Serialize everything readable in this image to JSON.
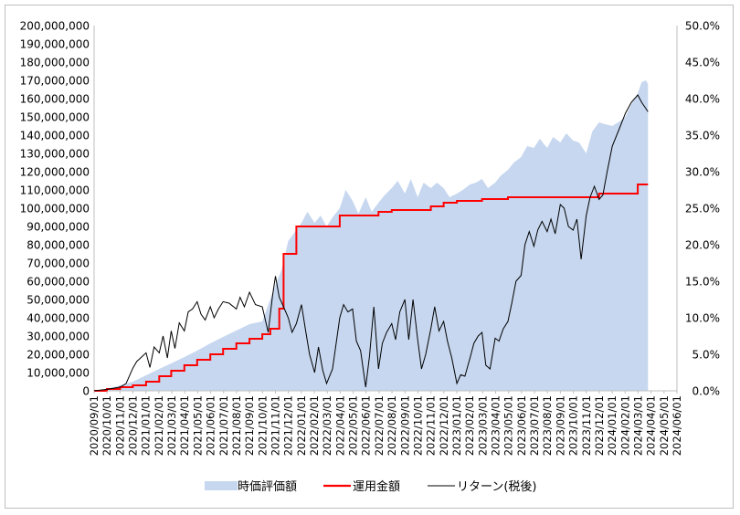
{
  "chart_data": {
    "type": "area",
    "title": "",
    "xlabel": "",
    "ylabel": "",
    "x_tick_labels": [
      "2020/09/01",
      "2020/10/01",
      "2020/11/01",
      "2020/12/01",
      "2021/01/01",
      "2021/02/01",
      "2021/03/01",
      "2021/04/01",
      "2021/05/01",
      "2021/06/01",
      "2021/07/01",
      "2021/08/01",
      "2021/09/01",
      "2021/10/01",
      "2021/11/01",
      "2021/12/01",
      "2022/01/01",
      "2022/02/01",
      "2022/03/01",
      "2022/04/01",
      "2022/05/01",
      "2022/06/01",
      "2022/07/01",
      "2022/08/01",
      "2022/09/01",
      "2022/10/01",
      "2022/11/01",
      "2022/12/01",
      "2023/01/01",
      "2023/02/01",
      "2023/03/01",
      "2023/04/01",
      "2023/05/01",
      "2023/06/01",
      "2023/07/01",
      "2023/08/01",
      "2023/09/01",
      "2023/10/01",
      "2023/11/01",
      "2023/12/01",
      "2024/01/01",
      "2024/02/01",
      "2024/03/01",
      "2024/04/01",
      "2024/05/01",
      "2024/06/01"
    ],
    "y_left": {
      "range": [
        0,
        200000000
      ],
      "tick_labels": [
        "0",
        "10,000,000",
        "20,000,000",
        "30,000,000",
        "40,000,000",
        "50,000,000",
        "60,000,000",
        "70,000,000",
        "80,000,000",
        "90,000,000",
        "100,000,000",
        "110,000,000",
        "120,000,000",
        "130,000,000",
        "140,000,000",
        "150,000,000",
        "160,000,000",
        "170,000,000",
        "180,000,000",
        "190,000,000",
        "200,000,000"
      ]
    },
    "y_right": {
      "range": [
        0,
        0.5
      ],
      "tick_labels": [
        "0.0%",
        "5.0%",
        "10.0%",
        "15.0%",
        "20.0%",
        "25.0%",
        "30.0%",
        "35.0%",
        "40.0%",
        "45.0%",
        "50.0%"
      ]
    },
    "gridlines": false,
    "legend_position": "bottom",
    "legend": [
      "時価評価額",
      "運用金額",
      "リターン(税後)"
    ],
    "colors": {
      "market_value": "#c6d7ef",
      "invested": "#ff0000",
      "return": "#000000"
    },
    "series": [
      {
        "name": "時価評価額",
        "kind": "area",
        "axis": "left",
        "points": [
          [
            "2020/09/01",
            0
          ],
          [
            "2020/10/01",
            1000000
          ],
          [
            "2020/11/01",
            3000000
          ],
          [
            "2020/12/01",
            5000000
          ],
          [
            "2021/01/01",
            8500000
          ],
          [
            "2021/02/01",
            12000000
          ],
          [
            "2021/03/01",
            15000000
          ],
          [
            "2021/04/01",
            18500000
          ],
          [
            "2021/05/01",
            22000000
          ],
          [
            "2021/06/01",
            26000000
          ],
          [
            "2021/07/01",
            29500000
          ],
          [
            "2021/08/01",
            33000000
          ],
          [
            "2021/09/01",
            36500000
          ],
          [
            "2021/10/01",
            38000000
          ],
          [
            "2021/11/01",
            58000000
          ],
          [
            "2021/11/15",
            66000000
          ],
          [
            "2021/12/01",
            82000000
          ],
          [
            "2022/01/01",
            92000000
          ],
          [
            "2022/01/15",
            98000000
          ],
          [
            "2022/02/01",
            92000000
          ],
          [
            "2022/02/15",
            96000000
          ],
          [
            "2022/03/01",
            90000000
          ],
          [
            "2022/03/15",
            95000000
          ],
          [
            "2022/04/01",
            100000000
          ],
          [
            "2022/04/15",
            110000000
          ],
          [
            "2022/05/01",
            104000000
          ],
          [
            "2022/05/15",
            97000000
          ],
          [
            "2022/06/01",
            106000000
          ],
          [
            "2022/06/15",
            98000000
          ],
          [
            "2022/07/01",
            103000000
          ],
          [
            "2022/07/15",
            107000000
          ],
          [
            "2022/08/01",
            111000000
          ],
          [
            "2022/08/15",
            115000000
          ],
          [
            "2022/09/01",
            108000000
          ],
          [
            "2022/09/15",
            116000000
          ],
          [
            "2022/10/01",
            106000000
          ],
          [
            "2022/10/15",
            114000000
          ],
          [
            "2022/11/01",
            111000000
          ],
          [
            "2022/11/15",
            114000000
          ],
          [
            "2022/12/01",
            111000000
          ],
          [
            "2022/12/15",
            106000000
          ],
          [
            "2023/01/01",
            108000000
          ],
          [
            "2023/01/15",
            110000000
          ],
          [
            "2023/02/01",
            113000000
          ],
          [
            "2023/02/15",
            114000000
          ],
          [
            "2023/03/01",
            116000000
          ],
          [
            "2023/03/15",
            111000000
          ],
          [
            "2023/04/01",
            114000000
          ],
          [
            "2023/04/15",
            118000000
          ],
          [
            "2023/05/01",
            121000000
          ],
          [
            "2023/05/15",
            125000000
          ],
          [
            "2023/06/01",
            128000000
          ],
          [
            "2023/06/15",
            134000000
          ],
          [
            "2023/07/01",
            133000000
          ],
          [
            "2023/07/15",
            138000000
          ],
          [
            "2023/08/01",
            133000000
          ],
          [
            "2023/08/15",
            139000000
          ],
          [
            "2023/09/01",
            136000000
          ],
          [
            "2023/09/15",
            141000000
          ],
          [
            "2023/10/01",
            137000000
          ],
          [
            "2023/10/15",
            136000000
          ],
          [
            "2023/11/01",
            130000000
          ],
          [
            "2023/11/15",
            142000000
          ],
          [
            "2023/12/01",
            147000000
          ],
          [
            "2023/12/15",
            146000000
          ],
          [
            "2024/01/01",
            145000000
          ],
          [
            "2024/01/15",
            147000000
          ],
          [
            "2024/02/01",
            150000000
          ],
          [
            "2024/02/15",
            157000000
          ],
          [
            "2024/03/01",
            163000000
          ],
          [
            "2024/03/10",
            169000000
          ],
          [
            "2024/03/20",
            170000000
          ],
          [
            "2024/03/25",
            168000000
          ]
        ]
      },
      {
        "name": "運用金額",
        "kind": "step",
        "axis": "left",
        "points": [
          [
            "2020/09/01",
            0
          ],
          [
            "2020/10/01",
            1000000
          ],
          [
            "2020/11/01",
            2000000
          ],
          [
            "2020/12/01",
            3000000
          ],
          [
            "2021/01/01",
            5000000
          ],
          [
            "2021/02/01",
            8000000
          ],
          [
            "2021/03/01",
            11000000
          ],
          [
            "2021/04/01",
            14000000
          ],
          [
            "2021/05/01",
            17000000
          ],
          [
            "2021/06/01",
            20000000
          ],
          [
            "2021/07/01",
            23000000
          ],
          [
            "2021/08/01",
            26000000
          ],
          [
            "2021/09/01",
            28500000
          ],
          [
            "2021/10/01",
            31000000
          ],
          [
            "2021/10/20",
            34000000
          ],
          [
            "2021/11/10",
            45000000
          ],
          [
            "2021/11/20",
            75000000
          ],
          [
            "2021/12/20",
            90000000
          ],
          [
            "2022/04/01",
            96000000
          ],
          [
            "2022/07/01",
            98000000
          ],
          [
            "2022/08/01",
            99000000
          ],
          [
            "2022/11/01",
            101000000
          ],
          [
            "2022/12/01",
            103000000
          ],
          [
            "2023/01/01",
            104000000
          ],
          [
            "2023/03/01",
            105000000
          ],
          [
            "2023/05/01",
            106000000
          ],
          [
            "2023/12/01",
            108000000
          ],
          [
            "2024/03/01",
            113000000
          ],
          [
            "2024/03/25",
            113000000
          ]
        ]
      },
      {
        "name": "リターン(税後)",
        "kind": "line",
        "axis": "right",
        "points": [
          [
            "2020/09/01",
            0.0
          ],
          [
            "2020/10/01",
            0.002
          ],
          [
            "2020/11/01",
            0.005
          ],
          [
            "2020/11/15",
            0.01
          ],
          [
            "2020/12/01",
            0.031
          ],
          [
            "2020/12/10",
            0.04
          ],
          [
            "2021/01/01",
            0.052
          ],
          [
            "2021/01/10",
            0.032
          ],
          [
            "2021/01/20",
            0.06
          ],
          [
            "2021/02/01",
            0.052
          ],
          [
            "2021/02/10",
            0.075
          ],
          [
            "2021/02/20",
            0.045
          ],
          [
            "2021/03/01",
            0.082
          ],
          [
            "2021/03/10",
            0.058
          ],
          [
            "2021/03/20",
            0.093
          ],
          [
            "2021/04/01",
            0.082
          ],
          [
            "2021/04/10",
            0.108
          ],
          [
            "2021/04/20",
            0.112
          ],
          [
            "2021/05/01",
            0.122
          ],
          [
            "2021/05/10",
            0.105
          ],
          [
            "2021/05/20",
            0.097
          ],
          [
            "2021/06/01",
            0.115
          ],
          [
            "2021/06/10",
            0.1
          ],
          [
            "2021/06/20",
            0.112
          ],
          [
            "2021/07/01",
            0.122
          ],
          [
            "2021/07/15",
            0.12
          ],
          [
            "2021/08/01",
            0.112
          ],
          [
            "2021/08/10",
            0.128
          ],
          [
            "2021/08/20",
            0.115
          ],
          [
            "2021/09/01",
            0.135
          ],
          [
            "2021/09/15",
            0.118
          ],
          [
            "2021/10/01",
            0.115
          ],
          [
            "2021/10/15",
            0.08
          ],
          [
            "2021/10/25",
            0.13
          ],
          [
            "2021/11/01",
            0.157
          ],
          [
            "2021/11/10",
            0.128
          ],
          [
            "2021/11/20",
            0.115
          ],
          [
            "2021/12/01",
            0.1
          ],
          [
            "2021/12/10",
            0.08
          ],
          [
            "2021/12/20",
            0.092
          ],
          [
            "2022/01/01",
            0.118
          ],
          [
            "2022/01/10",
            0.085
          ],
          [
            "2022/01/20",
            0.05
          ],
          [
            "2022/02/01",
            0.025
          ],
          [
            "2022/02/10",
            0.06
          ],
          [
            "2022/02/20",
            0.028
          ],
          [
            "2022/03/01",
            0.01
          ],
          [
            "2022/03/15",
            0.03
          ],
          [
            "2022/04/01",
            0.1
          ],
          [
            "2022/04/10",
            0.118
          ],
          [
            "2022/04/20",
            0.108
          ],
          [
            "2022/05/01",
            0.112
          ],
          [
            "2022/05/10",
            0.068
          ],
          [
            "2022/05/20",
            0.055
          ],
          [
            "2022/06/01",
            0.005
          ],
          [
            "2022/06/10",
            0.048
          ],
          [
            "2022/06/20",
            0.115
          ],
          [
            "2022/07/01",
            0.03
          ],
          [
            "2022/07/10",
            0.065
          ],
          [
            "2022/07/20",
            0.08
          ],
          [
            "2022/08/01",
            0.092
          ],
          [
            "2022/08/10",
            0.07
          ],
          [
            "2022/08/20",
            0.108
          ],
          [
            "2022/09/01",
            0.125
          ],
          [
            "2022/09/10",
            0.07
          ],
          [
            "2022/09/20",
            0.125
          ],
          [
            "2022/10/01",
            0.07
          ],
          [
            "2022/10/10",
            0.03
          ],
          [
            "2022/10/20",
            0.05
          ],
          [
            "2022/11/01",
            0.085
          ],
          [
            "2022/11/10",
            0.115
          ],
          [
            "2022/11/20",
            0.082
          ],
          [
            "2022/12/01",
            0.095
          ],
          [
            "2022/12/10",
            0.068
          ],
          [
            "2022/12/20",
            0.045
          ],
          [
            "2023/01/01",
            0.01
          ],
          [
            "2023/01/10",
            0.022
          ],
          [
            "2023/01/20",
            0.02
          ],
          [
            "2023/02/01",
            0.045
          ],
          [
            "2023/02/10",
            0.065
          ],
          [
            "2023/02/20",
            0.075
          ],
          [
            "2023/03/01",
            0.08
          ],
          [
            "2023/03/10",
            0.035
          ],
          [
            "2023/03/20",
            0.03
          ],
          [
            "2023/04/01",
            0.072
          ],
          [
            "2023/04/10",
            0.068
          ],
          [
            "2023/04/20",
            0.085
          ],
          [
            "2023/05/01",
            0.095
          ],
          [
            "2023/05/10",
            0.12
          ],
          [
            "2023/05/20",
            0.15
          ],
          [
            "2023/06/01",
            0.158
          ],
          [
            "2023/06/10",
            0.2
          ],
          [
            "2023/06/20",
            0.218
          ],
          [
            "2023/07/01",
            0.198
          ],
          [
            "2023/07/10",
            0.22
          ],
          [
            "2023/07/20",
            0.232
          ],
          [
            "2023/08/01",
            0.218
          ],
          [
            "2023/08/10",
            0.235
          ],
          [
            "2023/08/20",
            0.215
          ],
          [
            "2023/09/01",
            0.255
          ],
          [
            "2023/09/10",
            0.25
          ],
          [
            "2023/09/20",
            0.225
          ],
          [
            "2023/10/01",
            0.22
          ],
          [
            "2023/10/10",
            0.235
          ],
          [
            "2023/10/20",
            0.18
          ],
          [
            "2023/11/01",
            0.24
          ],
          [
            "2023/11/10",
            0.265
          ],
          [
            "2023/11/20",
            0.28
          ],
          [
            "2023/12/01",
            0.262
          ],
          [
            "2023/12/10",
            0.268
          ],
          [
            "2023/12/20",
            0.3
          ],
          [
            "2024/01/01",
            0.335
          ],
          [
            "2024/01/15",
            0.355
          ],
          [
            "2024/02/01",
            0.38
          ],
          [
            "2024/02/15",
            0.395
          ],
          [
            "2024/03/01",
            0.405
          ],
          [
            "2024/03/10",
            0.395
          ],
          [
            "2024/03/25",
            0.382
          ]
        ]
      }
    ]
  }
}
